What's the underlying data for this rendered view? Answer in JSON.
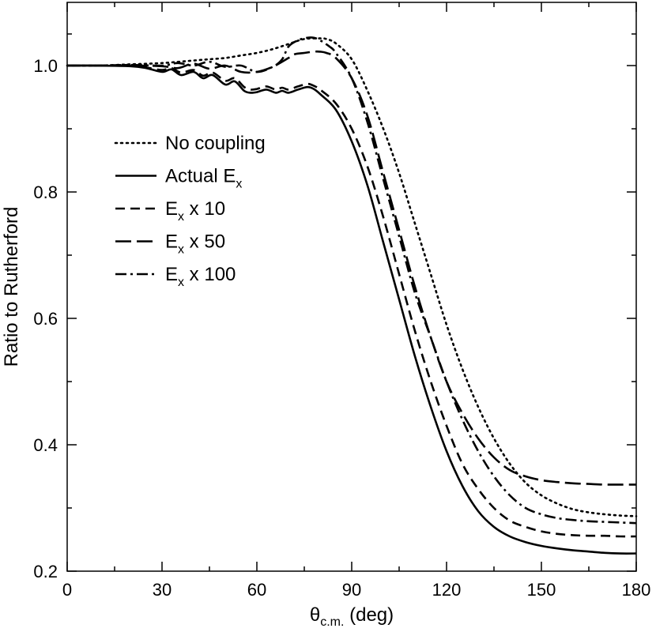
{
  "chart_data": {
    "type": "line",
    "title": "",
    "xlabel": {
      "main": "θ",
      "sub": "c.m.",
      "suffix": " (deg)"
    },
    "ylabel": "Ratio to Rutherford",
    "xlim": [
      0,
      180
    ],
    "ylim": [
      0.2,
      1.1
    ],
    "xticks": [
      0,
      30,
      60,
      90,
      120,
      150,
      180
    ],
    "xtick_labels": [
      "0",
      "30",
      "60",
      "90",
      "120",
      "150",
      "180"
    ],
    "yticks": [
      0.2,
      0.4,
      0.6,
      0.8,
      1.0
    ],
    "ytick_labels": [
      "0.2",
      "0.4",
      "0.6",
      "0.8",
      "1.0"
    ],
    "grid": false,
    "legend_position": "left",
    "series": [
      {
        "name": "No coupling",
        "label_main": "No coupling",
        "label_sub": "",
        "label_suffix": "",
        "style": "dotted",
        "x": [
          0,
          10,
          20,
          30,
          40,
          45,
          50,
          55,
          60,
          65,
          70,
          75,
          80,
          82,
          85,
          90,
          95,
          100,
          105,
          110,
          115,
          120,
          125,
          130,
          135,
          140,
          145,
          150,
          155,
          160,
          165,
          170,
          175,
          180
        ],
        "y": [
          1.0,
          1.0,
          1.002,
          1.004,
          1.008,
          1.01,
          1.012,
          1.016,
          1.02,
          1.026,
          1.034,
          1.042,
          1.043,
          1.042,
          1.035,
          1.01,
          0.96,
          0.9,
          0.83,
          0.75,
          0.67,
          0.59,
          0.52,
          0.46,
          0.41,
          0.37,
          0.34,
          0.32,
          0.307,
          0.298,
          0.293,
          0.29,
          0.288,
          0.287
        ]
      },
      {
        "name": "Actual Ex",
        "label_main": "Actual E",
        "label_sub": "x",
        "label_suffix": "",
        "style": "solid",
        "x": [
          0,
          10,
          20,
          25,
          30,
          33,
          36,
          40,
          43,
          46,
          50,
          53,
          56,
          58,
          60,
          63,
          66,
          68,
          70,
          73,
          76,
          78,
          80,
          85,
          90,
          95,
          100,
          105,
          110,
          115,
          120,
          125,
          130,
          135,
          140,
          145,
          150,
          155,
          160,
          165,
          170,
          175,
          180
        ],
        "y": [
          1.0,
          1.0,
          0.999,
          0.996,
          0.99,
          0.994,
          0.985,
          0.99,
          0.98,
          0.985,
          0.97,
          0.975,
          0.96,
          0.957,
          0.958,
          0.962,
          0.957,
          0.96,
          0.957,
          0.962,
          0.966,
          0.963,
          0.955,
          0.93,
          0.88,
          0.81,
          0.72,
          0.63,
          0.54,
          0.46,
          0.39,
          0.335,
          0.295,
          0.27,
          0.255,
          0.246,
          0.24,
          0.236,
          0.233,
          0.231,
          0.229,
          0.228,
          0.228
        ]
      },
      {
        "name": "Ex x 10",
        "label_main": "E",
        "label_sub": "x",
        "label_suffix": " x 10",
        "style": "dashed",
        "x": [
          0,
          10,
          20,
          25,
          30,
          33,
          36,
          40,
          43,
          46,
          50,
          53,
          56,
          58,
          60,
          63,
          66,
          68,
          70,
          73,
          76,
          78,
          80,
          85,
          90,
          95,
          100,
          105,
          110,
          115,
          120,
          125,
          130,
          135,
          140,
          145,
          150,
          155,
          160,
          165,
          170,
          175,
          180
        ],
        "y": [
          1.0,
          1.0,
          1.0,
          0.997,
          0.993,
          0.996,
          0.989,
          0.993,
          0.984,
          0.989,
          0.976,
          0.98,
          0.966,
          0.962,
          0.963,
          0.967,
          0.962,
          0.965,
          0.962,
          0.967,
          0.971,
          0.968,
          0.962,
          0.94,
          0.9,
          0.84,
          0.76,
          0.67,
          0.58,
          0.5,
          0.43,
          0.37,
          0.33,
          0.3,
          0.28,
          0.27,
          0.263,
          0.259,
          0.257,
          0.256,
          0.256,
          0.255,
          0.255
        ]
      },
      {
        "name": "Ex x 50",
        "label_main": "E",
        "label_sub": "x",
        "label_suffix": " x 50",
        "style": "longdash",
        "x": [
          0,
          10,
          20,
          30,
          35,
          40,
          45,
          50,
          55,
          60,
          65,
          70,
          72,
          75,
          78,
          80,
          82,
          85,
          90,
          95,
          100,
          105,
          110,
          115,
          120,
          125,
          130,
          135,
          140,
          145,
          150,
          155,
          160,
          165,
          170,
          175,
          180
        ],
        "y": [
          1.0,
          1.0,
          1.0,
          0.999,
          0.996,
          1.003,
          0.995,
          1.0,
          0.99,
          0.99,
          0.998,
          1.012,
          1.018,
          1.02,
          1.022,
          1.022,
          1.02,
          1.012,
          0.98,
          0.92,
          0.83,
          0.74,
          0.65,
          0.57,
          0.5,
          0.45,
          0.41,
          0.38,
          0.36,
          0.35,
          0.344,
          0.341,
          0.339,
          0.338,
          0.337,
          0.337,
          0.337
        ]
      },
      {
        "name": "Ex x 100",
        "label_main": "E",
        "label_sub": "x",
        "label_suffix": " x 100",
        "style": "dashdot",
        "x": [
          0,
          10,
          20,
          30,
          35,
          40,
          45,
          50,
          55,
          60,
          65,
          68,
          70,
          73,
          76,
          78,
          80,
          83,
          85,
          90,
          95,
          100,
          105,
          110,
          115,
          120,
          125,
          130,
          135,
          140,
          145,
          150,
          155,
          160,
          165,
          170,
          175,
          180
        ],
        "y": [
          1.0,
          1.0,
          1.001,
          1.0,
          1.004,
          1.0,
          1.006,
          0.998,
          1.0,
          0.99,
          0.998,
          1.01,
          1.03,
          1.04,
          1.044,
          1.044,
          1.04,
          1.03,
          1.02,
          0.98,
          0.91,
          0.82,
          0.73,
          0.64,
          0.57,
          0.5,
          0.44,
          0.39,
          0.35,
          0.32,
          0.3,
          0.29,
          0.284,
          0.281,
          0.279,
          0.278,
          0.277,
          0.276
        ]
      }
    ]
  }
}
